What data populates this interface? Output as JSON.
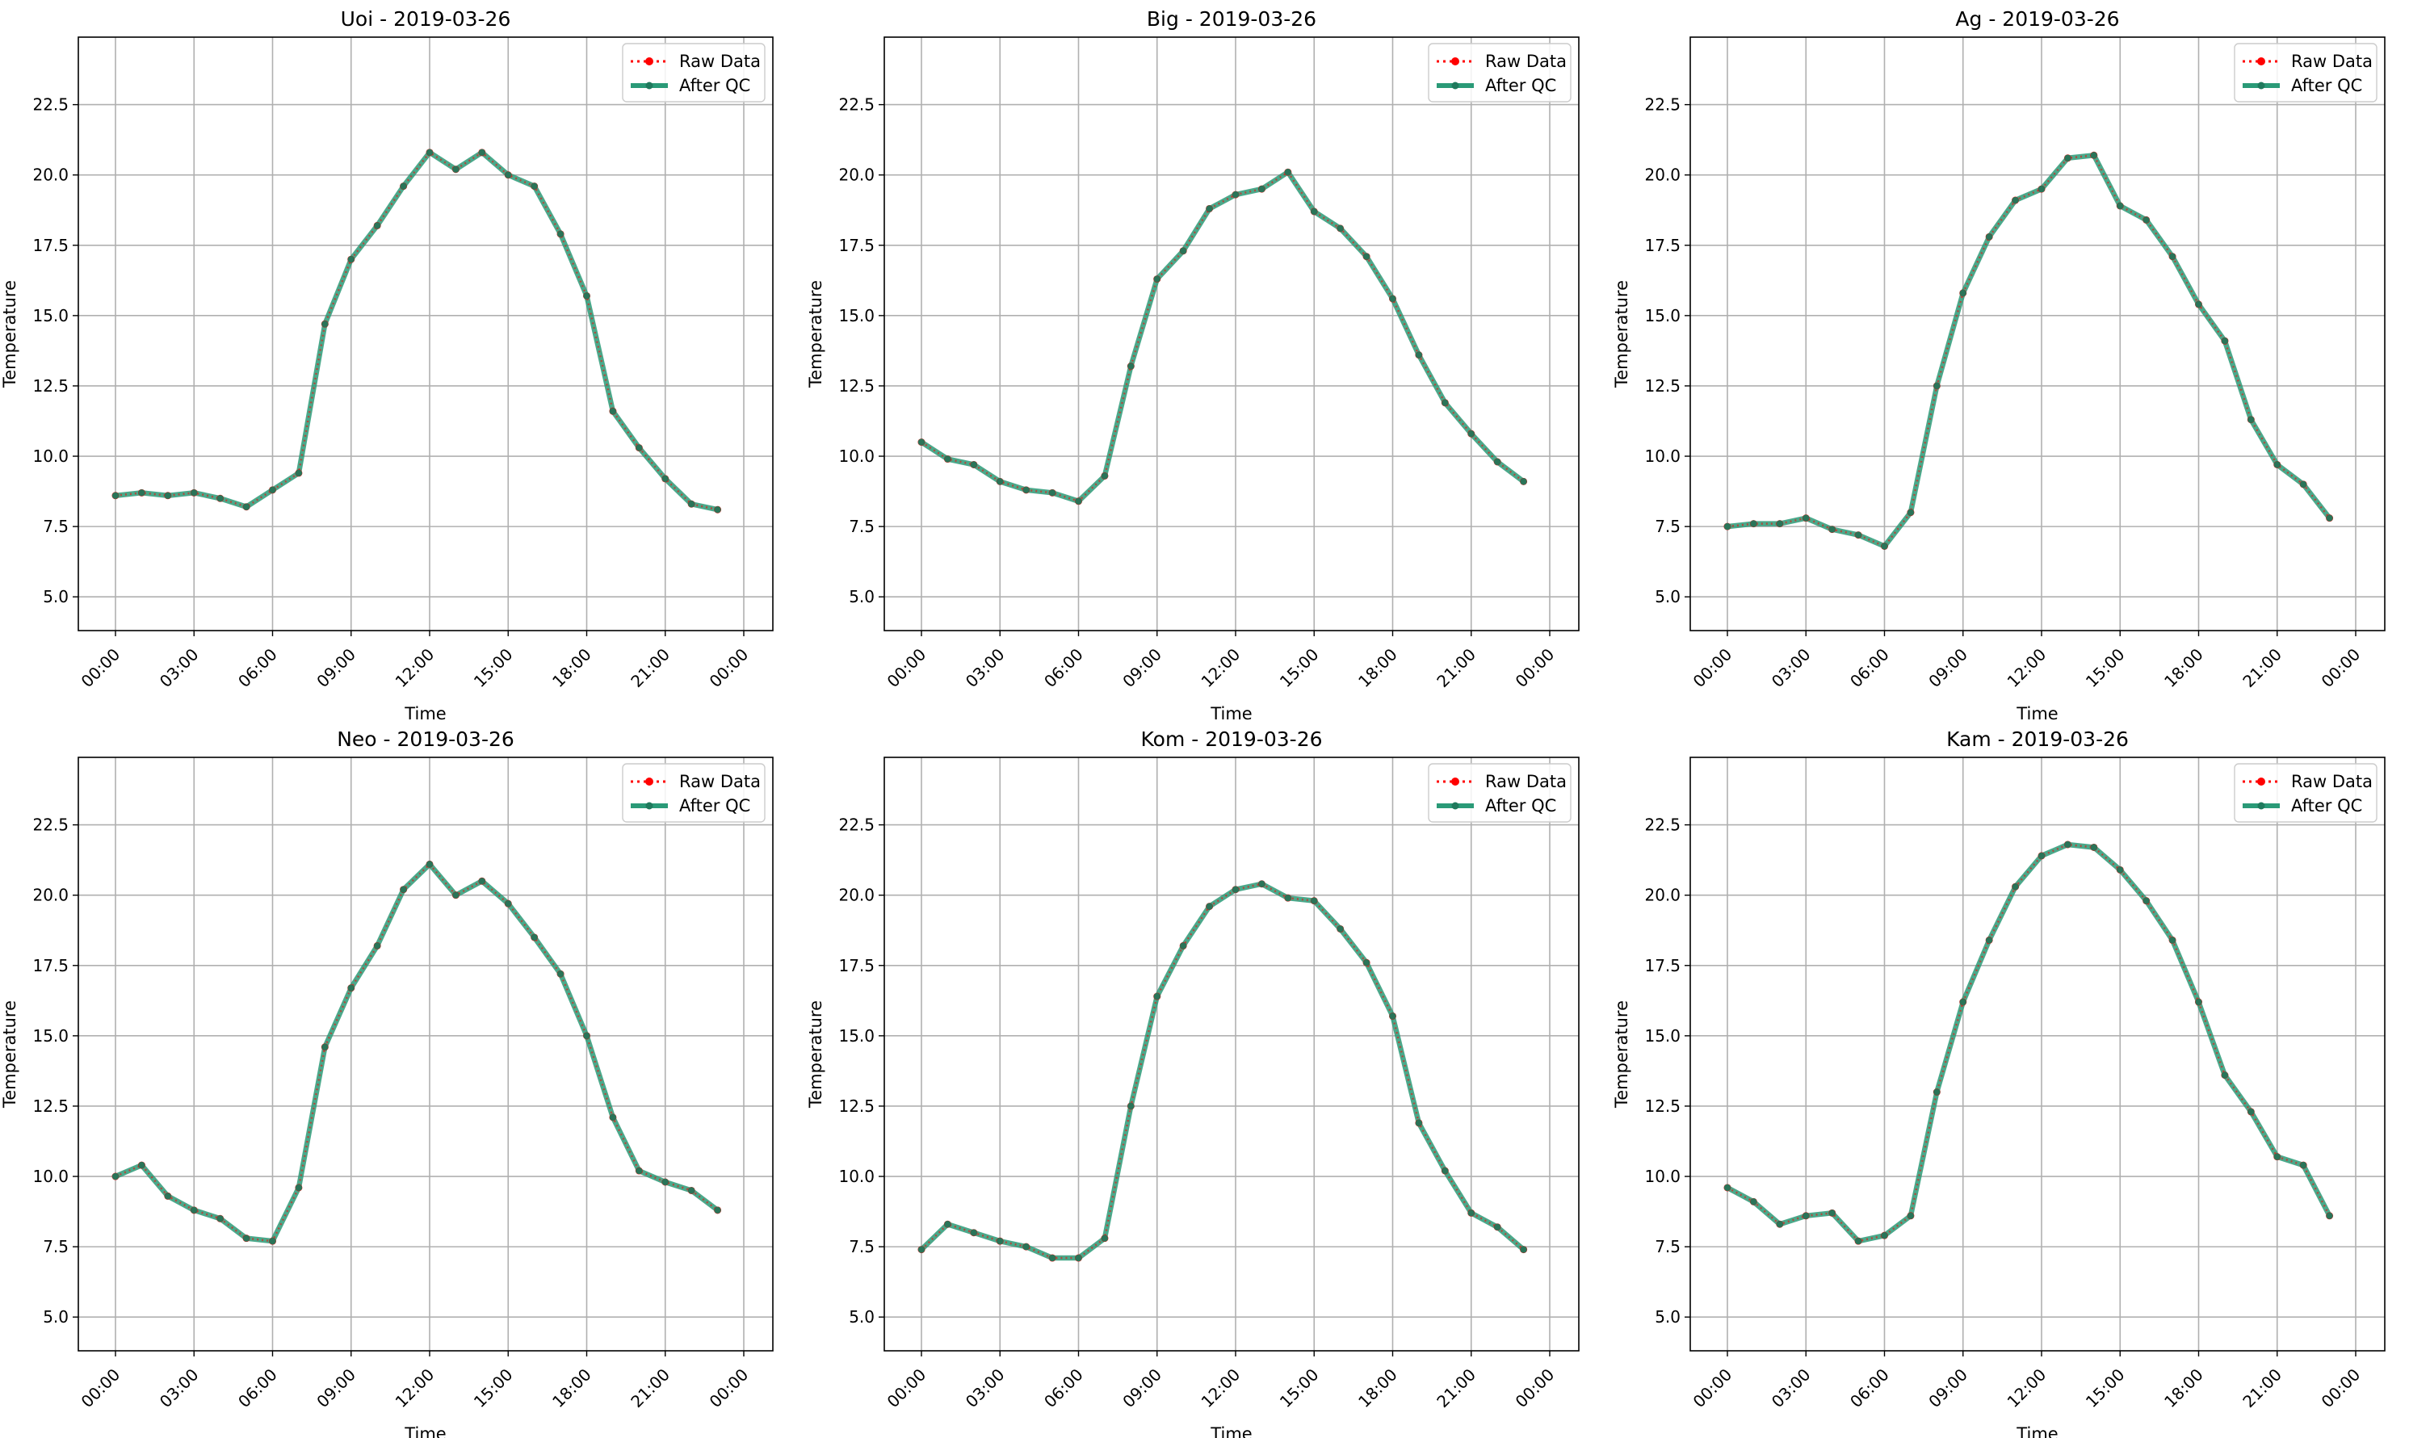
{
  "figure": {
    "background": "#ffffff"
  },
  "style": {
    "raw_color": "#ff0000",
    "qc_color": "#2a9a77",
    "qc_marker_color": "#1f7a5d",
    "grid_color": "#b0b0b0"
  },
  "chart_data": [
    {
      "type": "line",
      "title": "Uoi - 2019-03-26",
      "xlabel": "Time",
      "ylabel": "Temperature",
      "x": [
        "00:00",
        "01:00",
        "02:00",
        "03:00",
        "04:00",
        "05:00",
        "06:00",
        "07:00",
        "08:00",
        "09:00",
        "10:00",
        "11:00",
        "12:00",
        "13:00",
        "14:00",
        "15:00",
        "16:00",
        "17:00",
        "18:00",
        "19:00",
        "20:00",
        "21:00",
        "22:00",
        "23:00"
      ],
      "xticks": [
        "00:00",
        "03:00",
        "06:00",
        "09:00",
        "12:00",
        "15:00",
        "18:00",
        "21:00",
        "00:00"
      ],
      "yticks": [
        "5.0",
        "7.5",
        "10.0",
        "12.5",
        "15.0",
        "17.5",
        "20.0",
        "22.5"
      ],
      "ylim": [
        3.8,
        24.9
      ],
      "grid": true,
      "legend": "top-right",
      "series": [
        {
          "name": "Raw Data",
          "values": [
            8.6,
            8.7,
            8.6,
            8.7,
            8.5,
            8.2,
            8.8,
            9.4,
            14.7,
            17.0,
            18.2,
            19.6,
            20.8,
            20.2,
            20.8,
            20.0,
            19.6,
            17.9,
            15.7,
            11.6,
            10.3,
            9.2,
            8.3,
            8.1
          ]
        },
        {
          "name": "After QC",
          "values": [
            8.6,
            8.7,
            8.6,
            8.7,
            8.5,
            8.2,
            8.8,
            9.4,
            14.7,
            17.0,
            18.2,
            19.6,
            20.8,
            20.2,
            20.8,
            20.0,
            19.6,
            17.9,
            15.7,
            11.6,
            10.3,
            9.2,
            8.3,
            8.1
          ]
        }
      ]
    },
    {
      "type": "line",
      "title": "Big - 2019-03-26",
      "xlabel": "Time",
      "ylabel": "Temperature",
      "x": [
        "00:00",
        "01:00",
        "02:00",
        "03:00",
        "04:00",
        "05:00",
        "06:00",
        "07:00",
        "08:00",
        "09:00",
        "10:00",
        "11:00",
        "12:00",
        "13:00",
        "14:00",
        "15:00",
        "16:00",
        "17:00",
        "18:00",
        "19:00",
        "20:00",
        "21:00",
        "22:00",
        "23:00"
      ],
      "xticks": [
        "00:00",
        "03:00",
        "06:00",
        "09:00",
        "12:00",
        "15:00",
        "18:00",
        "21:00",
        "00:00"
      ],
      "yticks": [
        "5.0",
        "7.5",
        "10.0",
        "12.5",
        "15.0",
        "17.5",
        "20.0",
        "22.5"
      ],
      "ylim": [
        3.8,
        24.9
      ],
      "grid": true,
      "legend": "top-right",
      "series": [
        {
          "name": "Raw Data",
          "values": [
            10.5,
            9.9,
            9.7,
            9.1,
            8.8,
            8.7,
            8.4,
            9.3,
            13.2,
            16.3,
            17.3,
            18.8,
            19.3,
            19.5,
            20.1,
            18.7,
            18.1,
            17.1,
            15.6,
            13.6,
            11.9,
            10.8,
            9.8,
            9.1
          ]
        },
        {
          "name": "After QC",
          "values": [
            10.5,
            9.9,
            9.7,
            9.1,
            8.8,
            8.7,
            8.4,
            9.3,
            13.2,
            16.3,
            17.3,
            18.8,
            19.3,
            19.5,
            20.1,
            18.7,
            18.1,
            17.1,
            15.6,
            13.6,
            11.9,
            10.8,
            9.8,
            9.1
          ]
        }
      ]
    },
    {
      "type": "line",
      "title": "Ag - 2019-03-26",
      "xlabel": "Time",
      "ylabel": "Temperature",
      "x": [
        "00:00",
        "01:00",
        "02:00",
        "03:00",
        "04:00",
        "05:00",
        "06:00",
        "07:00",
        "08:00",
        "09:00",
        "10:00",
        "11:00",
        "12:00",
        "13:00",
        "14:00",
        "15:00",
        "16:00",
        "17:00",
        "18:00",
        "19:00",
        "20:00",
        "21:00",
        "22:00",
        "23:00"
      ],
      "xticks": [
        "00:00",
        "03:00",
        "06:00",
        "09:00",
        "12:00",
        "15:00",
        "18:00",
        "21:00",
        "00:00"
      ],
      "yticks": [
        "5.0",
        "7.5",
        "10.0",
        "12.5",
        "15.0",
        "17.5",
        "20.0",
        "22.5"
      ],
      "ylim": [
        3.8,
        24.9
      ],
      "grid": true,
      "legend": "top-right",
      "series": [
        {
          "name": "Raw Data",
          "values": [
            7.5,
            7.6,
            7.6,
            7.8,
            7.4,
            7.2,
            6.8,
            8.0,
            12.5,
            15.8,
            17.8,
            19.1,
            19.5,
            20.6,
            20.7,
            18.9,
            18.4,
            17.1,
            15.4,
            14.1,
            11.3,
            9.7,
            9.0,
            7.8
          ]
        },
        {
          "name": "After QC",
          "values": [
            7.5,
            7.6,
            7.6,
            7.8,
            7.4,
            7.2,
            6.8,
            8.0,
            12.5,
            15.8,
            17.8,
            19.1,
            19.5,
            20.6,
            20.7,
            18.9,
            18.4,
            17.1,
            15.4,
            14.1,
            11.3,
            9.7,
            9.0,
            7.8
          ]
        }
      ]
    },
    {
      "type": "line",
      "title": "Neo - 2019-03-26",
      "xlabel": "Time",
      "ylabel": "Temperature",
      "x": [
        "00:00",
        "01:00",
        "02:00",
        "03:00",
        "04:00",
        "05:00",
        "06:00",
        "07:00",
        "08:00",
        "09:00",
        "10:00",
        "11:00",
        "12:00",
        "13:00",
        "14:00",
        "15:00",
        "16:00",
        "17:00",
        "18:00",
        "19:00",
        "20:00",
        "21:00",
        "22:00",
        "23:00"
      ],
      "xticks": [
        "00:00",
        "03:00",
        "06:00",
        "09:00",
        "12:00",
        "15:00",
        "18:00",
        "21:00",
        "00:00"
      ],
      "yticks": [
        "5.0",
        "7.5",
        "10.0",
        "12.5",
        "15.0",
        "17.5",
        "20.0",
        "22.5"
      ],
      "ylim": [
        3.8,
        24.9
      ],
      "grid": true,
      "legend": "top-right",
      "series": [
        {
          "name": "Raw Data",
          "values": [
            10.0,
            10.4,
            9.3,
            8.8,
            8.5,
            7.8,
            7.7,
            9.6,
            14.6,
            16.7,
            18.2,
            20.2,
            21.1,
            20.0,
            20.5,
            19.7,
            18.5,
            17.2,
            15.0,
            12.1,
            10.2,
            9.8,
            9.5,
            8.8
          ]
        },
        {
          "name": "After QC",
          "values": [
            10.0,
            10.4,
            9.3,
            8.8,
            8.5,
            7.8,
            7.7,
            9.6,
            14.6,
            16.7,
            18.2,
            20.2,
            21.1,
            20.0,
            20.5,
            19.7,
            18.5,
            17.2,
            15.0,
            12.1,
            10.2,
            9.8,
            9.5,
            8.8
          ]
        }
      ]
    },
    {
      "type": "line",
      "title": "Kom - 2019-03-26",
      "xlabel": "Time",
      "ylabel": "Temperature",
      "x": [
        "00:00",
        "01:00",
        "02:00",
        "03:00",
        "04:00",
        "05:00",
        "06:00",
        "07:00",
        "08:00",
        "09:00",
        "10:00",
        "11:00",
        "12:00",
        "13:00",
        "14:00",
        "15:00",
        "16:00",
        "17:00",
        "18:00",
        "19:00",
        "20:00",
        "21:00",
        "22:00",
        "23:00"
      ],
      "xticks": [
        "00:00",
        "03:00",
        "06:00",
        "09:00",
        "12:00",
        "15:00",
        "18:00",
        "21:00",
        "00:00"
      ],
      "yticks": [
        "5.0",
        "7.5",
        "10.0",
        "12.5",
        "15.0",
        "17.5",
        "20.0",
        "22.5"
      ],
      "ylim": [
        3.8,
        24.9
      ],
      "grid": true,
      "legend": "top-right",
      "series": [
        {
          "name": "Raw Data",
          "values": [
            7.4,
            8.3,
            8.0,
            7.7,
            7.5,
            7.1,
            7.1,
            7.8,
            12.5,
            16.4,
            18.2,
            19.6,
            20.2,
            20.4,
            19.9,
            19.8,
            18.8,
            17.6,
            15.7,
            11.9,
            10.2,
            8.7,
            8.2,
            7.4
          ]
        },
        {
          "name": "After QC",
          "values": [
            7.4,
            8.3,
            8.0,
            7.7,
            7.5,
            7.1,
            7.1,
            7.8,
            12.5,
            16.4,
            18.2,
            19.6,
            20.2,
            20.4,
            19.9,
            19.8,
            18.8,
            17.6,
            15.7,
            11.9,
            10.2,
            8.7,
            8.2,
            7.4
          ]
        }
      ]
    },
    {
      "type": "line",
      "title": "Kam - 2019-03-26",
      "xlabel": "Time",
      "ylabel": "Temperature",
      "x": [
        "00:00",
        "01:00",
        "02:00",
        "03:00",
        "04:00",
        "05:00",
        "06:00",
        "07:00",
        "08:00",
        "09:00",
        "10:00",
        "11:00",
        "12:00",
        "13:00",
        "14:00",
        "15:00",
        "16:00",
        "17:00",
        "18:00",
        "19:00",
        "20:00",
        "21:00",
        "22:00",
        "23:00"
      ],
      "xticks": [
        "00:00",
        "03:00",
        "06:00",
        "09:00",
        "12:00",
        "15:00",
        "18:00",
        "21:00",
        "00:00"
      ],
      "yticks": [
        "5.0",
        "7.5",
        "10.0",
        "12.5",
        "15.0",
        "17.5",
        "20.0",
        "22.5"
      ],
      "ylim": [
        3.8,
        24.9
      ],
      "grid": true,
      "legend": "top-right",
      "series": [
        {
          "name": "Raw Data",
          "values": [
            9.6,
            9.1,
            8.3,
            8.6,
            8.7,
            7.7,
            7.9,
            8.6,
            13.0,
            16.2,
            18.4,
            20.3,
            21.4,
            21.8,
            21.7,
            20.9,
            19.8,
            18.4,
            16.2,
            13.6,
            12.3,
            10.7,
            10.4,
            8.6
          ]
        },
        {
          "name": "After QC",
          "values": [
            9.6,
            9.1,
            8.3,
            8.6,
            8.7,
            7.7,
            7.9,
            8.6,
            13.0,
            16.2,
            18.4,
            20.3,
            21.4,
            21.8,
            21.7,
            20.9,
            19.8,
            18.4,
            16.2,
            13.6,
            12.3,
            10.7,
            10.4,
            8.6
          ]
        }
      ]
    }
  ]
}
